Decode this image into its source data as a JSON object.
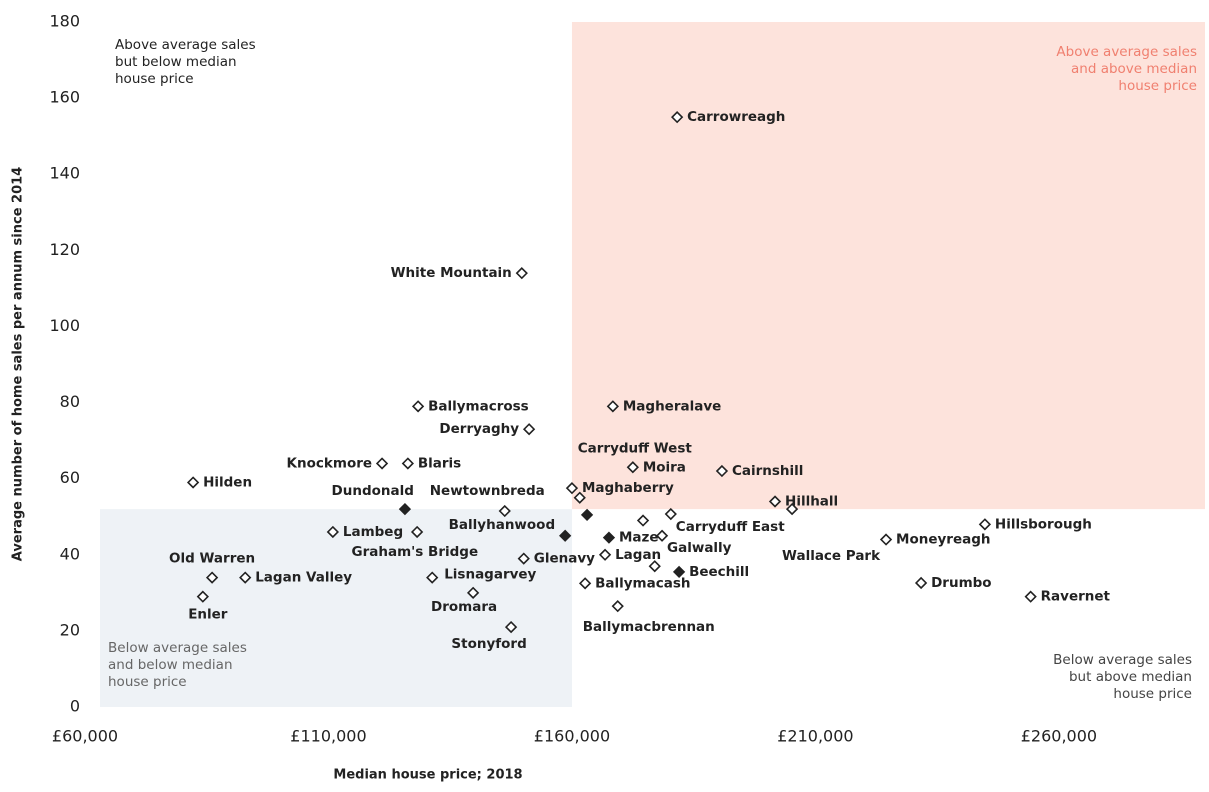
{
  "chart_data": {
    "type": "scatter",
    "x_label": "Median house price; 2018",
    "y_label": "Average number of home sales per annum since 2014",
    "xlim": [
      60000,
      290000
    ],
    "ylim": [
      0,
      180
    ],
    "xticks": [
      {
        "value": 60000,
        "label": "£60,000"
      },
      {
        "value": 110000,
        "label": "£110,000"
      },
      {
        "value": 160000,
        "label": "£160,000"
      },
      {
        "value": 210000,
        "label": "£210,000"
      },
      {
        "value": 260000,
        "label": "£260,000"
      }
    ],
    "yticks": [
      0,
      20,
      40,
      60,
      80,
      100,
      120,
      140,
      160,
      180
    ],
    "median_x": 160000,
    "average_y": 52,
    "quadrant_labels": {
      "top_left": "Above average sales but below median house price",
      "top_right": "Above average sales and above median house price",
      "bottom_left": "Below average sales and below median house price",
      "bottom_right": "Below average sales but above median house price"
    },
    "labels": [
      "Carrowreagh",
      "White Mountain",
      "Ballymacross",
      "Derryaghy",
      "Magheralave",
      "Moira",
      "Carryduff West",
      "Knockmore",
      "Blaris",
      "Hilden",
      "Cairnshill",
      "Dundonald",
      "Newtownbreda",
      "Maghaberry",
      "Hillhall",
      "Lambeg",
      "Graham's Bridge",
      "Ballyhanwood",
      null,
      null,
      "Maze",
      "Carryduff East",
      "Galwally",
      "Lagan",
      "Glenavy",
      "Wallace Park",
      "Moneyreagh",
      "Hillsborough",
      "Old Warren",
      "Lagan Valley",
      "Lisnagarvey",
      "Ballymacash",
      "Beechill",
      null,
      "Drumbo",
      "Ravernet",
      "Enler",
      "Dromara",
      "Ballymacbrennan",
      "Stonyford"
    ],
    "x": [
      181600,
      149700,
      128400,
      151200,
      168400,
      172500,
      161600,
      121000,
      126300,
      82200,
      190800,
      125700,
      146200,
      160000,
      201700,
      110900,
      128200,
      158600,
      163100,
      174600,
      167600,
      180300,
      178500,
      166800,
      150100,
      205200,
      224500,
      244800,
      86100,
      92900,
      131300,
      162700,
      182000,
      177000,
      231700,
      254200,
      84200,
      139700,
      169400,
      147500
    ],
    "y": [
      155,
      114,
      79,
      73,
      79,
      63,
      55,
      64,
      64,
      59,
      62,
      52,
      51.5,
      57.5,
      54,
      46,
      46,
      45,
      50.5,
      49,
      44.5,
      50.7,
      45,
      40,
      39,
      52,
      44,
      48,
      34,
      34,
      34,
      32.5,
      35.5,
      37,
      32.6,
      29,
      29,
      30,
      26.5,
      21
    ],
    "filled": [
      false,
      false,
      false,
      false,
      false,
      false,
      false,
      false,
      false,
      false,
      false,
      true,
      false,
      false,
      false,
      false,
      false,
      true,
      true,
      false,
      true,
      false,
      false,
      false,
      false,
      false,
      false,
      false,
      false,
      false,
      false,
      false,
      true,
      false,
      false,
      false,
      false,
      false,
      false,
      false
    ],
    "color": "#222222"
  }
}
